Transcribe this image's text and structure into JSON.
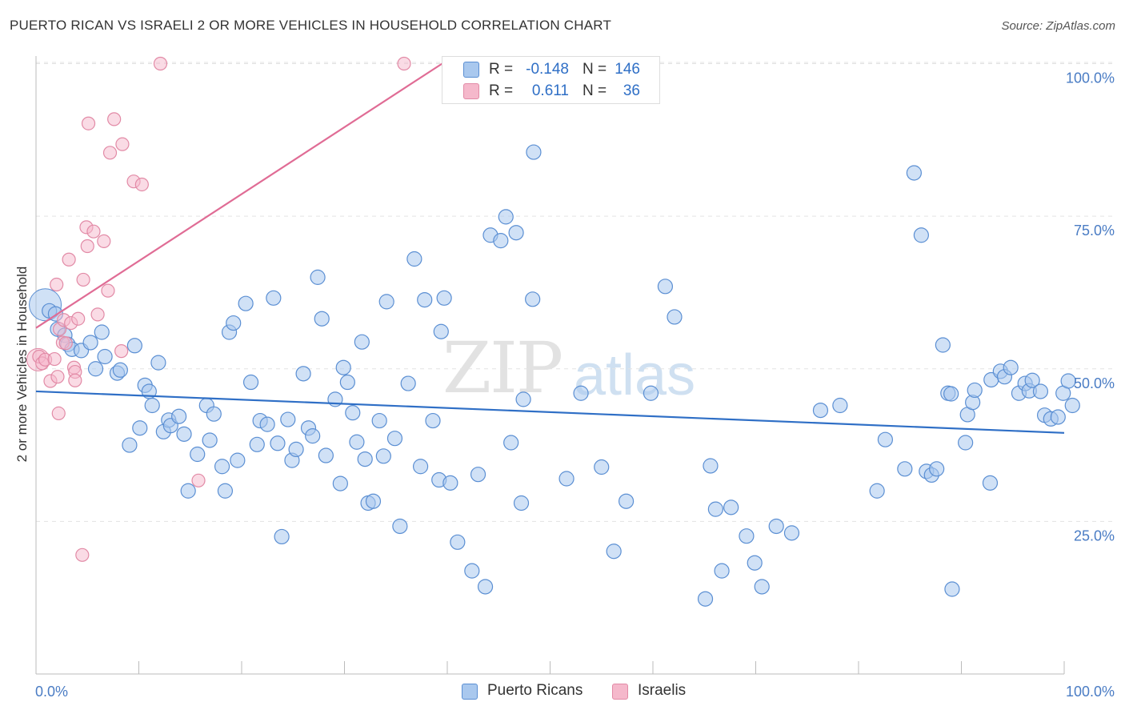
{
  "header": {
    "title": "PUERTO RICAN VS ISRAELI 2 OR MORE VEHICLES IN HOUSEHOLD CORRELATION CHART",
    "source": "Source: ZipAtlas.com"
  },
  "legend": {
    "rows": [
      {
        "r_label": "R =",
        "r_value": "-0.148",
        "n_label": "N =",
        "n_value": "146"
      },
      {
        "r_label": "R =",
        "r_value": "0.611",
        "n_label": "N =",
        "n_value": "36"
      }
    ],
    "bottom": [
      "Puerto Ricans",
      "Israelis"
    ]
  },
  "watermark": {
    "zip": "ZIP",
    "atlas": "atlas"
  },
  "colors": {
    "blue_fill": "#a9c8ee",
    "blue_stroke": "#5b8fd3",
    "blue_line": "#2f6fc6",
    "pink_fill": "#f5b8cb",
    "pink_stroke": "#e28aa6",
    "pink_line": "#e06c95",
    "tick_text": "#4a7cc4"
  },
  "chart_data": {
    "type": "scatter",
    "title": "PUERTO RICAN VS ISRAELI 2 OR MORE VEHICLES IN HOUSEHOLD CORRELATION CHART",
    "xlabel": "",
    "ylabel": "2 or more Vehicles in Household",
    "xlim": [
      0,
      100
    ],
    "ylim": [
      0,
      102
    ],
    "x_tick_labels": [
      "0.0%",
      "100.0%"
    ],
    "y_ticks": [
      25,
      50,
      75,
      100
    ],
    "y_tick_labels": [
      "25.0%",
      "50.0%",
      "75.0%",
      "100.0%"
    ],
    "series": [
      {
        "name": "Puerto Ricans",
        "R": -0.148,
        "N": 146,
        "trend": {
          "x": [
            0,
            100
          ],
          "y": [
            46.3,
            39.5
          ]
        },
        "points": [
          [
            1.3,
            59.5
          ],
          [
            1.9,
            59
          ],
          [
            2.1,
            56.5
          ],
          [
            2.8,
            55.5
          ],
          [
            3.1,
            54
          ],
          [
            3.5,
            53.2
          ],
          [
            4.4,
            53
          ],
          [
            5.3,
            54.3
          ],
          [
            6.4,
            56
          ],
          [
            6.7,
            52
          ],
          [
            5.8,
            50
          ],
          [
            7.9,
            49.3
          ],
          [
            8.2,
            49.8
          ],
          [
            9.1,
            37.5
          ],
          [
            9.6,
            53.8
          ],
          [
            10.1,
            40.3
          ],
          [
            10.6,
            47.3
          ],
          [
            11,
            46.3
          ],
          [
            11.3,
            44
          ],
          [
            11.9,
            51
          ],
          [
            12.4,
            39.7
          ],
          [
            12.9,
            41.6
          ],
          [
            13.1,
            40.7
          ],
          [
            13.9,
            42.2
          ],
          [
            14.4,
            39.3
          ],
          [
            14.8,
            30
          ],
          [
            15.7,
            36
          ],
          [
            16.6,
            44
          ],
          [
            16.9,
            38.3
          ],
          [
            17.3,
            42.6
          ],
          [
            18.1,
            34
          ],
          [
            18.4,
            30
          ],
          [
            18.8,
            56
          ],
          [
            19.2,
            57.5
          ],
          [
            19.6,
            35
          ],
          [
            20.4,
            60.7
          ],
          [
            20.9,
            47.8
          ],
          [
            21.5,
            37.6
          ],
          [
            21.8,
            41.5
          ],
          [
            22.5,
            40.9
          ],
          [
            23.1,
            61.6
          ],
          [
            23.5,
            37.8
          ],
          [
            23.9,
            22.5
          ],
          [
            24.5,
            41.7
          ],
          [
            24.9,
            35
          ],
          [
            25.3,
            36.8
          ],
          [
            26,
            49.2
          ],
          [
            26.5,
            40.3
          ],
          [
            26.9,
            39
          ],
          [
            27.4,
            65
          ],
          [
            27.8,
            58.2
          ],
          [
            28.2,
            35.8
          ],
          [
            29.1,
            45
          ],
          [
            29.6,
            31.2
          ],
          [
            29.9,
            50.2
          ],
          [
            30.3,
            47.8
          ],
          [
            30.8,
            42.8
          ],
          [
            31.2,
            38
          ],
          [
            31.7,
            54.4
          ],
          [
            32,
            35.2
          ],
          [
            32.3,
            28
          ],
          [
            32.8,
            28.3
          ],
          [
            33.4,
            41.5
          ],
          [
            33.8,
            35.7
          ],
          [
            34.1,
            61
          ],
          [
            34.9,
            38.6
          ],
          [
            35.4,
            24.2
          ],
          [
            36.2,
            47.6
          ],
          [
            36.8,
            68
          ],
          [
            37.4,
            34
          ],
          [
            37.8,
            61.3
          ],
          [
            38.6,
            41.5
          ],
          [
            39.2,
            31.8
          ],
          [
            39.4,
            56.1
          ],
          [
            39.7,
            61.6
          ],
          [
            40.3,
            31.3
          ],
          [
            41,
            21.6
          ],
          [
            42.4,
            16.9
          ],
          [
            43,
            32.7
          ],
          [
            43.7,
            14.3
          ],
          [
            44.2,
            71.9
          ],
          [
            45.2,
            71
          ],
          [
            45.7,
            74.9
          ],
          [
            46.2,
            37.9
          ],
          [
            46.7,
            72.3
          ],
          [
            47.2,
            28
          ],
          [
            47.4,
            45
          ],
          [
            48.3,
            61.4
          ],
          [
            48.4,
            85.5
          ],
          [
            51.6,
            32
          ],
          [
            53,
            46
          ],
          [
            55,
            33.9
          ],
          [
            56.2,
            20.1
          ],
          [
            57.4,
            28.3
          ],
          [
            59.8,
            46
          ],
          [
            61.2,
            63.5
          ],
          [
            62.1,
            58.5
          ],
          [
            65.1,
            12.3
          ],
          [
            65.6,
            34.1
          ],
          [
            66.1,
            27
          ],
          [
            66.7,
            16.9
          ],
          [
            67.6,
            27.3
          ],
          [
            69.1,
            22.6
          ],
          [
            69.9,
            18.2
          ],
          [
            70.6,
            14.3
          ],
          [
            72,
            24.2
          ],
          [
            73.5,
            23.1
          ],
          [
            76.3,
            43.2
          ],
          [
            78.2,
            44
          ],
          [
            81.8,
            30
          ],
          [
            82.6,
            38.4
          ],
          [
            84.5,
            33.6
          ],
          [
            85.4,
            82.1
          ],
          [
            86.1,
            71.9
          ],
          [
            86.6,
            33.2
          ],
          [
            87.1,
            32.6
          ],
          [
            87.6,
            33.6
          ],
          [
            88.2,
            53.9
          ],
          [
            88.7,
            46
          ],
          [
            89,
            45.9
          ],
          [
            89.1,
            13.9
          ],
          [
            90.4,
            37.9
          ],
          [
            90.6,
            42.5
          ],
          [
            91.1,
            44.5
          ],
          [
            91.3,
            46.5
          ],
          [
            92.8,
            31.3
          ],
          [
            92.9,
            48.2
          ],
          [
            93.8,
            49.6
          ],
          [
            94.2,
            48.7
          ],
          [
            94.8,
            50.2
          ],
          [
            95.6,
            46
          ],
          [
            96.2,
            47.6
          ],
          [
            96.6,
            46.4
          ],
          [
            96.9,
            48.1
          ],
          [
            97.7,
            46.3
          ],
          [
            98.1,
            42.4
          ],
          [
            98.7,
            41.8
          ],
          [
            99.4,
            42.1
          ],
          [
            99.9,
            46
          ],
          [
            100.4,
            48
          ],
          [
            100.8,
            44
          ]
        ]
      },
      {
        "name": "Israelis",
        "R": 0.611,
        "N": 36,
        "trend": {
          "x": [
            0,
            39.5
          ],
          "y": [
            56.7,
            100
          ]
        },
        "points": [
          [
            0.3,
            52
          ],
          [
            0.6,
            50.9
          ],
          [
            0.9,
            51.5
          ],
          [
            1.4,
            48
          ],
          [
            1.8,
            51.6
          ],
          [
            2,
            63.8
          ],
          [
            2.1,
            48.7
          ],
          [
            2.2,
            42.7
          ],
          [
            2.3,
            56.5
          ],
          [
            2.6,
            54.3
          ],
          [
            2.7,
            58
          ],
          [
            2.9,
            54.2
          ],
          [
            3.2,
            67.9
          ],
          [
            3.4,
            57.5
          ],
          [
            3.7,
            50.2
          ],
          [
            3.8,
            49.5
          ],
          [
            3.8,
            48.1
          ],
          [
            4.1,
            58.2
          ],
          [
            4.5,
            19.5
          ],
          [
            4.6,
            64.6
          ],
          [
            4.9,
            73.2
          ],
          [
            5,
            70.1
          ],
          [
            5.1,
            90.2
          ],
          [
            5.6,
            72.5
          ],
          [
            6,
            58.9
          ],
          [
            6.6,
            70.9
          ],
          [
            7,
            62.8
          ],
          [
            7.2,
            85.4
          ],
          [
            7.6,
            90.9
          ],
          [
            8.3,
            52.9
          ],
          [
            8.4,
            86.8
          ],
          [
            9.5,
            80.7
          ],
          [
            10.3,
            80.2
          ],
          [
            12.1,
            100
          ],
          [
            15.8,
            31.7
          ],
          [
            35.8,
            100
          ]
        ]
      }
    ]
  }
}
